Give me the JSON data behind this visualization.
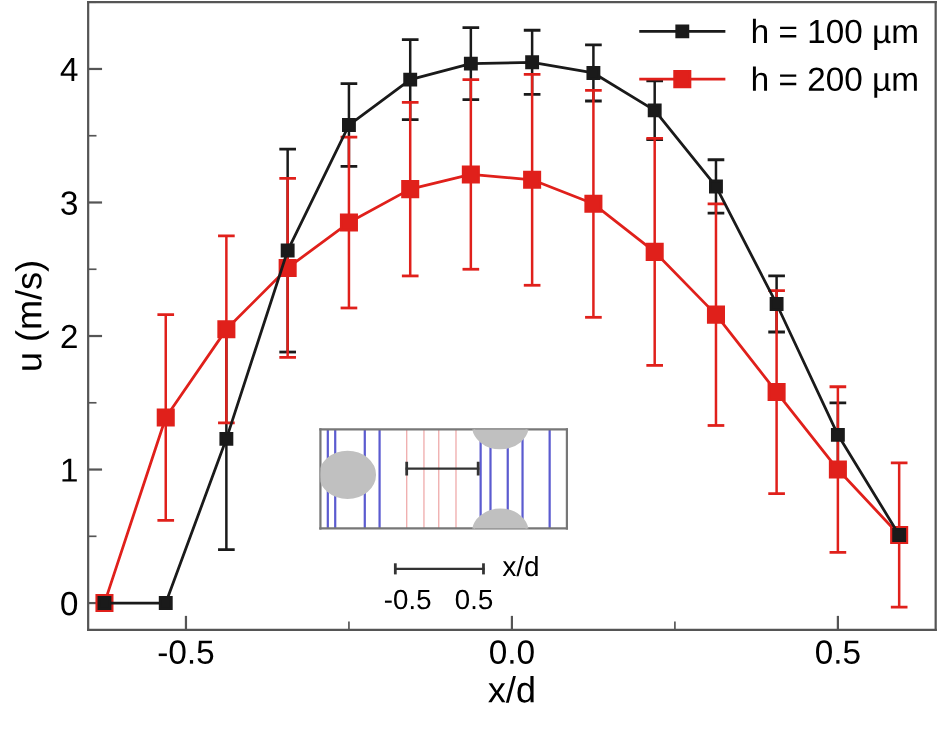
{
  "chart_data": {
    "type": "line",
    "xlabel": "x/d",
    "ylabel": "u (m/s)",
    "x": [
      -0.625,
      -0.531,
      -0.438,
      -0.344,
      -0.25,
      -0.156,
      -0.063,
      0.031,
      0.125,
      0.219,
      0.313,
      0.406,
      0.5,
      0.594
    ],
    "series": [
      {
        "name": "h = 100 µm",
        "color": "#1a1a1a",
        "values": [
          0,
          0,
          1.23,
          2.64,
          3.58,
          3.92,
          4.04,
          4.05,
          3.97,
          3.69,
          3.12,
          2.24,
          1.26,
          0.51
        ],
        "errors": [
          null,
          null,
          0.83,
          0.76,
          0.31,
          0.3,
          0.27,
          0.24,
          0.21,
          0.22,
          0.2,
          0.21,
          0.24,
          0.05
        ]
      },
      {
        "name": "h = 200 µm",
        "color": "#e0201b",
        "values": [
          0,
          1.39,
          2.05,
          2.51,
          2.85,
          3.1,
          3.21,
          3.17,
          2.99,
          2.63,
          2.16,
          1.58,
          1.0,
          0.51
        ],
        "errors": [
          null,
          0.77,
          0.7,
          0.67,
          0.64,
          0.65,
          0.71,
          0.79,
          0.85,
          0.85,
          0.83,
          0.76,
          0.62,
          0.54
        ]
      }
    ],
    "xlim": [
      -0.65,
      0.65
    ],
    "ylim": [
      -0.2,
      4.5
    ],
    "xticks": [
      -0.5,
      {
        "value": 0,
        "label": "0.0"
      },
      0.5
    ],
    "yticks": [
      0,
      1,
      2,
      3,
      4
    ],
    "marker": "square",
    "legend": "top right",
    "grid": false,
    "annotations": [
      "x/d",
      "-0.5",
      "0.5"
    ]
  }
}
